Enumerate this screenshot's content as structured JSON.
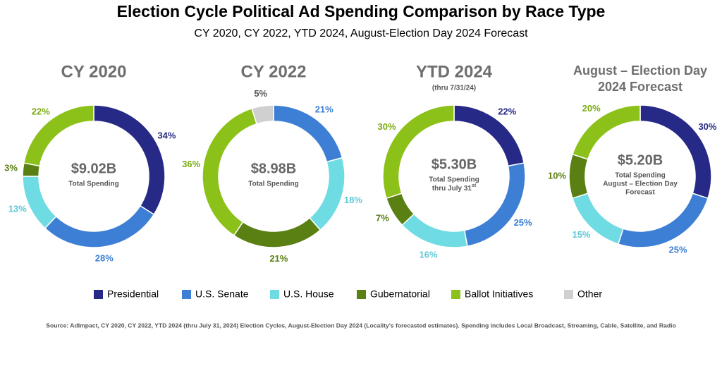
{
  "header": {
    "title": "Election Cycle Political Ad Spending Comparison by Race Type",
    "subtitle": "CY 2020, CY 2022, YTD 2024, August-Election Day 2024 Forecast"
  },
  "chart_data": [
    {
      "type": "donut",
      "title": [
        "CY 2020"
      ],
      "center_value": "$9.02B",
      "center_lines": [
        "Total Spending"
      ],
      "categories": [
        "Presidential",
        "U.S. Senate",
        "U.S. House",
        "Gubernatorial",
        "Ballot Initiatives"
      ],
      "values": [
        34,
        28,
        13,
        3,
        22
      ],
      "value_labels": [
        "34%",
        "28%",
        "13%",
        "3%",
        "22%"
      ],
      "colors": [
        "#262a86",
        "#3d7fd4",
        "#6fdbe3",
        "#5a7f12",
        "#8cc11a"
      ]
    },
    {
      "type": "donut",
      "title": [
        "CY 2022"
      ],
      "center_value": "$8.98B",
      "center_lines": [
        "Total Spending"
      ],
      "categories": [
        "U.S. Senate",
        "U.S. House",
        "Gubernatorial",
        "Ballot Initiatives",
        "Other"
      ],
      "values": [
        21,
        18,
        21,
        36,
        5
      ],
      "value_labels": [
        "21%",
        "18%",
        "21%",
        "36%",
        "5%"
      ],
      "colors": [
        "#3d7fd4",
        "#6fdbe3",
        "#5a7f12",
        "#8cc11a",
        "#d0d0d0"
      ]
    },
    {
      "type": "donut",
      "title": [
        "YTD 2024"
      ],
      "subtitle": "(thru 7/31/24)",
      "center_value": "$5.30B",
      "center_lines": [
        "Total Spending",
        "thru July 31"
      ],
      "center_sup": "st",
      "categories": [
        "Presidential",
        "U.S. Senate",
        "U.S. House",
        "Gubernatorial",
        "Ballot Initiatives"
      ],
      "values": [
        22,
        25,
        16,
        7,
        30
      ],
      "value_labels": [
        "22%",
        "25%",
        "16%",
        "7%",
        "30%"
      ],
      "colors": [
        "#262a86",
        "#3d7fd4",
        "#6fdbe3",
        "#5a7f12",
        "#8cc11a"
      ]
    },
    {
      "type": "donut",
      "title": [
        "August – Election Day",
        "2024 Forecast"
      ],
      "center_value": "$5.20B",
      "center_lines": [
        "Total Spending",
        "August – Election Day",
        "Forecast"
      ],
      "categories": [
        "Presidential",
        "U.S. Senate",
        "U.S. House",
        "Gubernatorial",
        "Ballot Initiatives"
      ],
      "values": [
        30,
        25,
        15,
        10,
        20
      ],
      "value_labels": [
        "30%",
        "25%",
        "15%",
        "10%",
        "20%"
      ],
      "colors": [
        "#262a86",
        "#3d7fd4",
        "#6fdbe3",
        "#5a7f12",
        "#8cc11a"
      ]
    }
  ],
  "legend": [
    {
      "name": "Presidential",
      "color": "#262a86"
    },
    {
      "name": "U.S. Senate",
      "color": "#3d7fd4"
    },
    {
      "name": "U.S. House",
      "color": "#6fdbe3"
    },
    {
      "name": "Gubernatorial",
      "color": "#5a7f12"
    },
    {
      "name": "Ballot Initiatives",
      "color": "#8cc11a"
    },
    {
      "name": "Other",
      "color": "#d0d0d0"
    }
  ],
  "source": "Source: AdImpact, CY 2020, CY 2022, YTD 2024 (thru July 31, 2024) Election Cycles, August-Election Day 2024 (Locality's forecasted estimates). Spending includes Local Broadcast, Streaming, Cable, Satellite, and Radio"
}
